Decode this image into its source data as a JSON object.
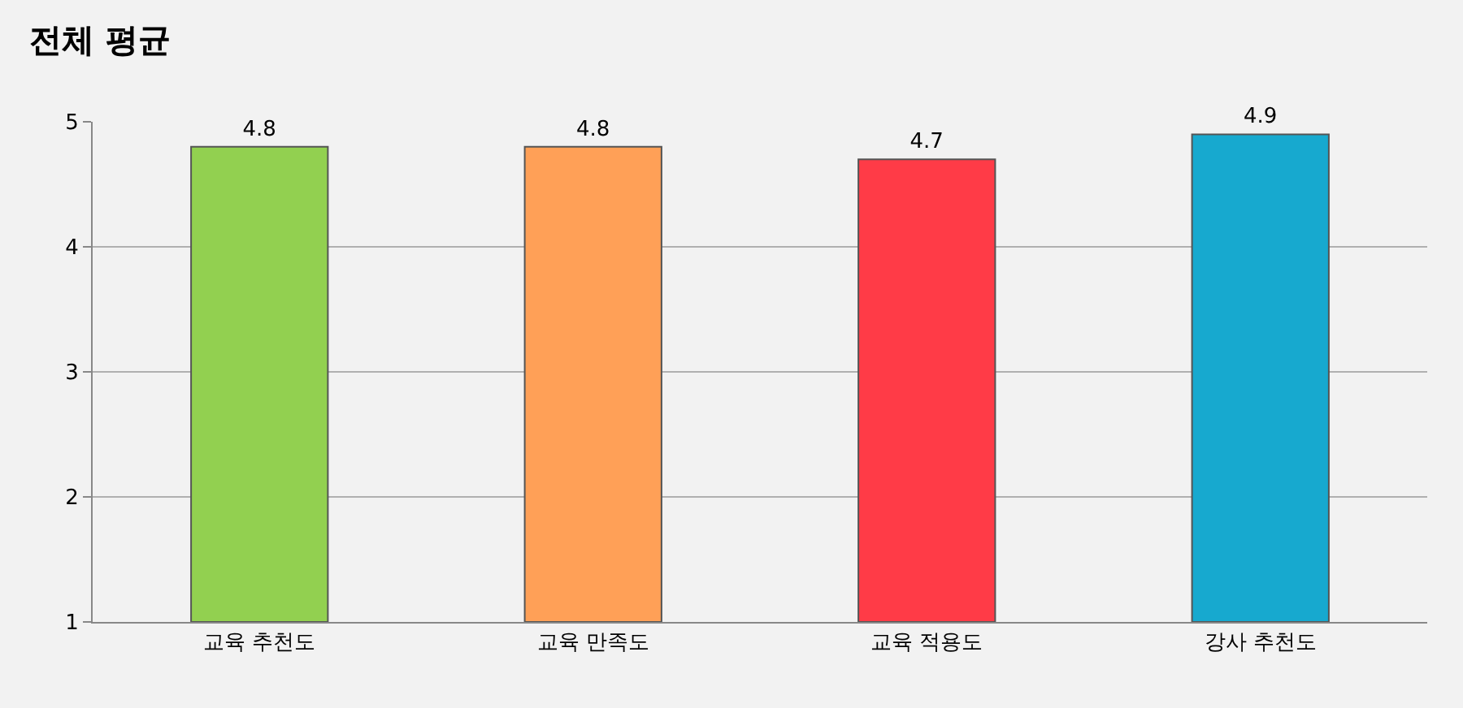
{
  "chart_data": {
    "type": "bar",
    "title": "전체 평균",
    "categories": [
      "교육 추천도",
      "교육 만족도",
      "교육 적용도",
      "강사 추천도"
    ],
    "values": [
      4.8,
      4.8,
      4.7,
      4.9
    ],
    "colors": [
      "#92d050",
      "#ffa057",
      "#ff3b47",
      "#17a9cf"
    ],
    "ylim": [
      1,
      5
    ],
    "yticks": [
      1,
      2,
      3,
      4,
      5
    ],
    "grid": "y",
    "data_labels": true,
    "legend": false
  }
}
